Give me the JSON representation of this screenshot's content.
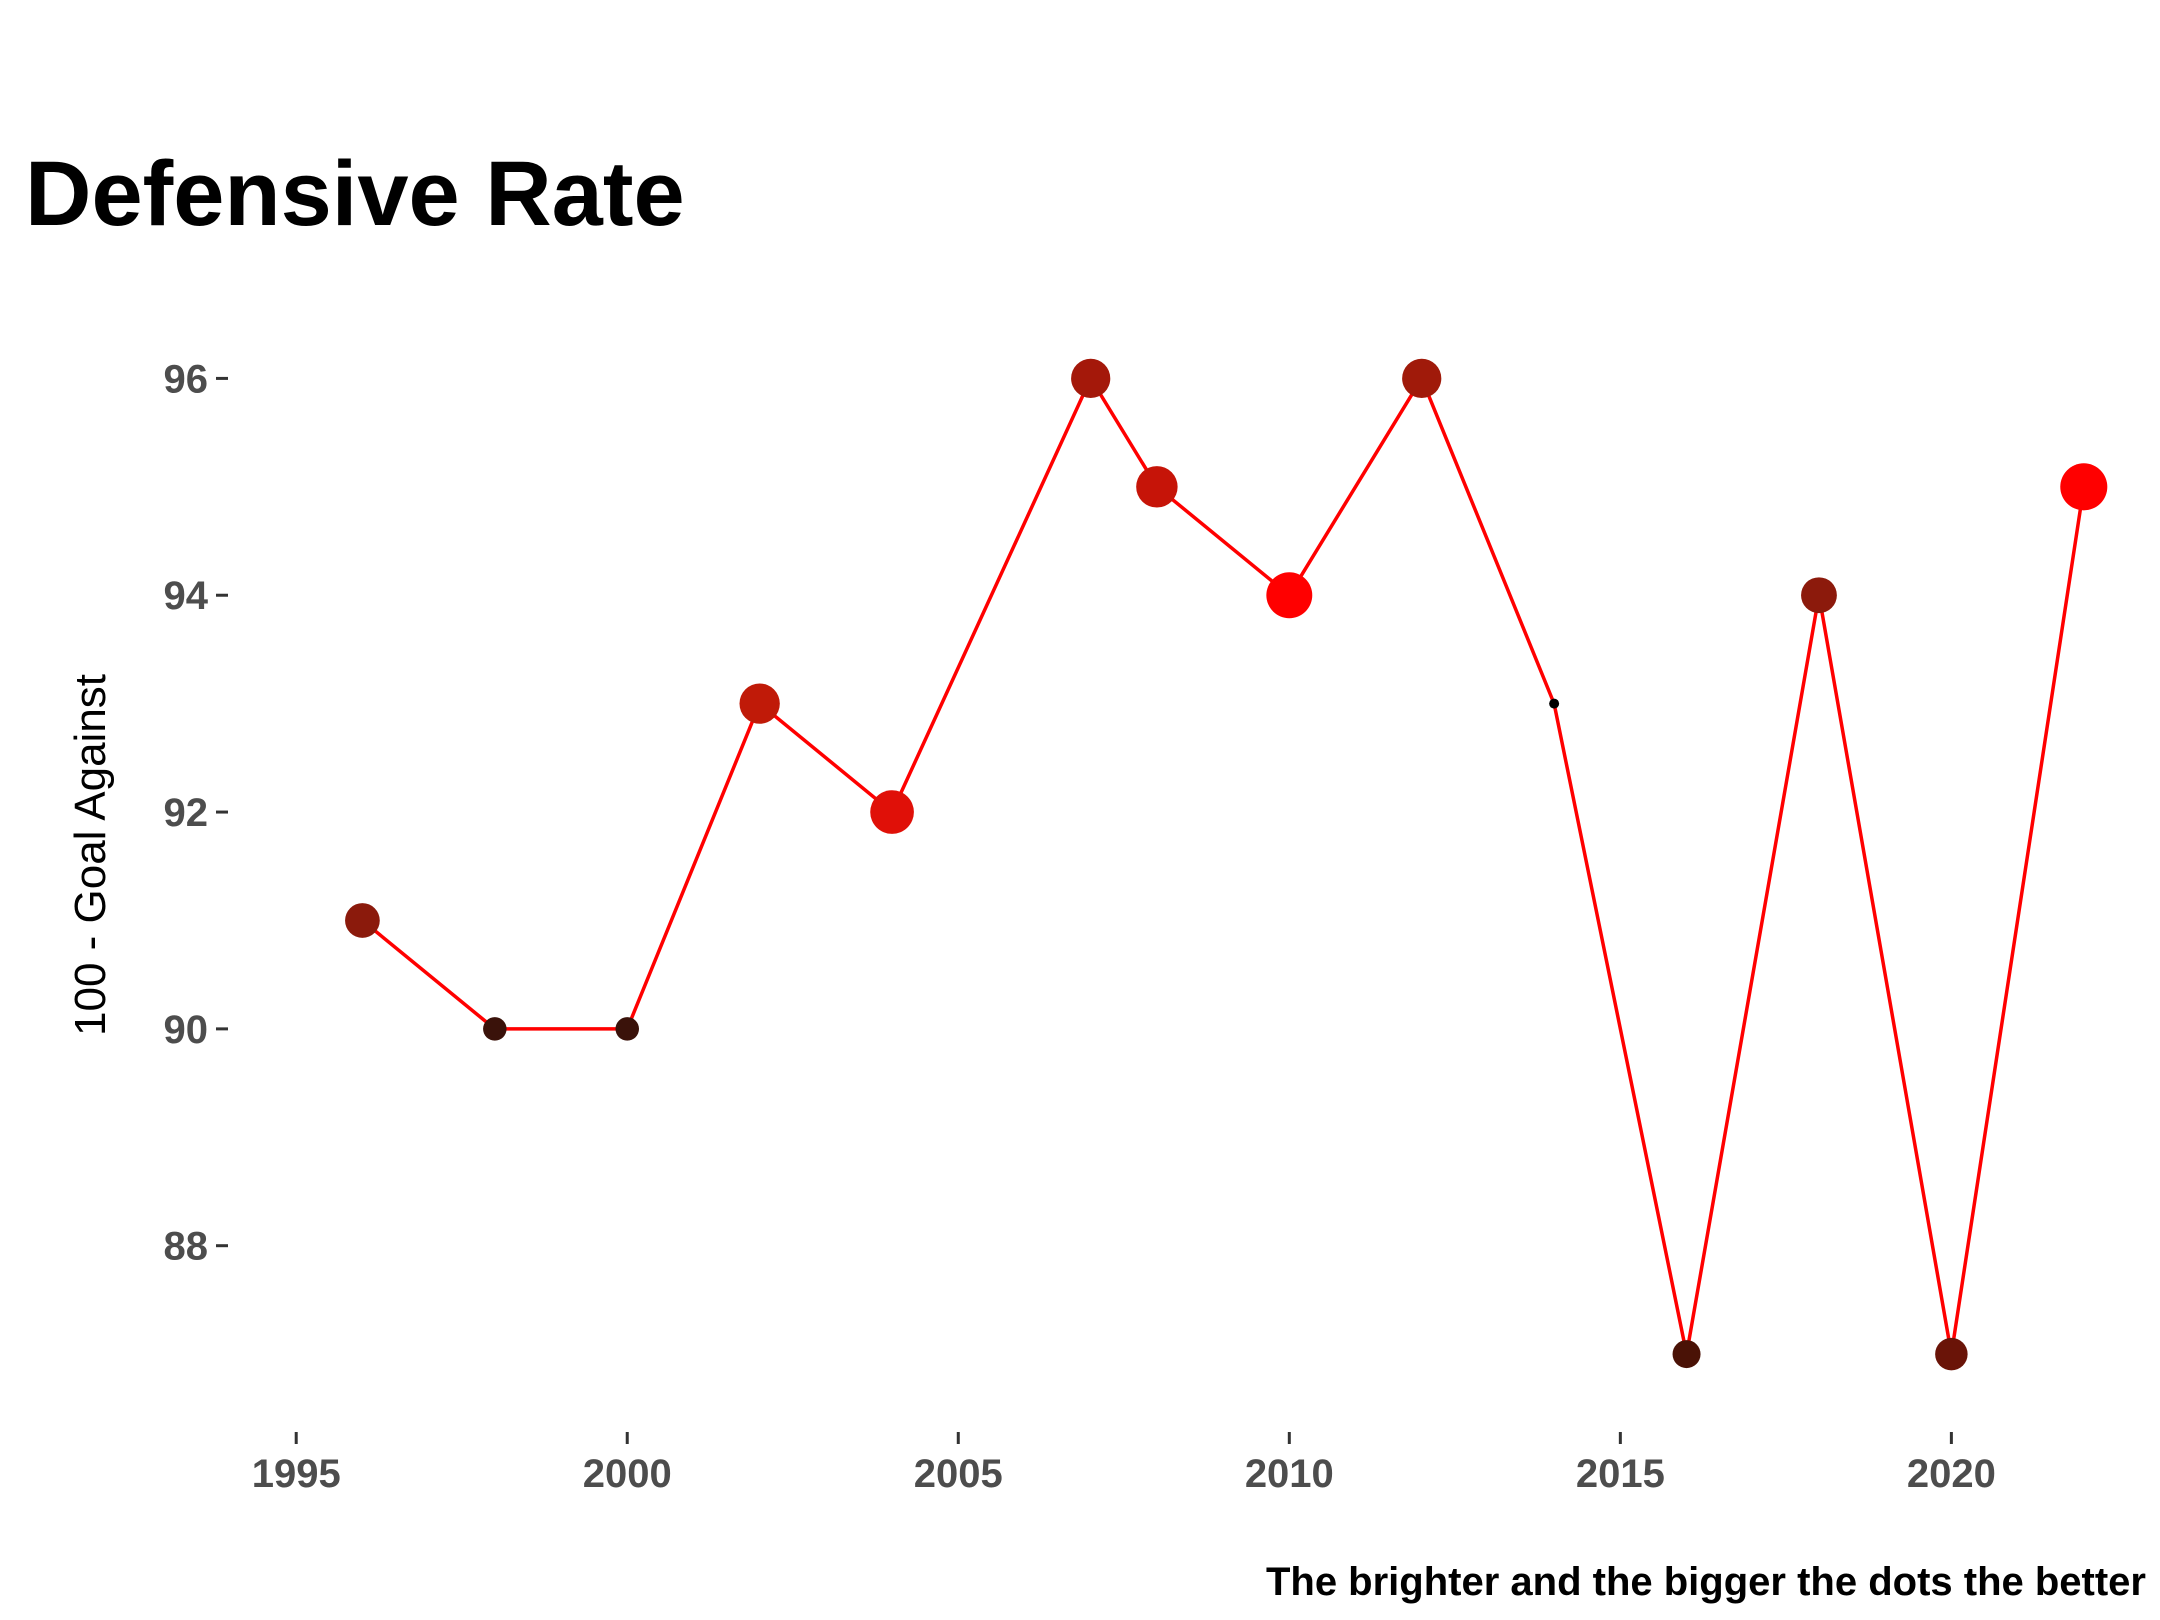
{
  "chart_data": {
    "type": "scatter",
    "title": "Defensive Rate",
    "ylabel": "100 - Goal Against",
    "xlabel": "",
    "caption": "The brighter and the bigger the dots the better",
    "xlim": [
      1994,
      2023
    ],
    "ylim": [
      86.3,
      97
    ],
    "x_ticks": [
      1995,
      2000,
      2005,
      2010,
      2015,
      2020
    ],
    "y_ticks": [
      88,
      90,
      92,
      94,
      96
    ],
    "grid": false,
    "legend": "none",
    "line_color": "#ff0000",
    "series": [
      {
        "x": [
          1996,
          1998,
          2000,
          2002,
          2004,
          2007,
          2008,
          2010,
          2012,
          2014,
          2016,
          2018,
          2020,
          2022
        ],
        "y": [
          91,
          90,
          90,
          93,
          92,
          96,
          95,
          94,
          96,
          93,
          87,
          94,
          87,
          95
        ],
        "colors": [
          "#8b1a0c",
          "#3a120a",
          "#3a120a",
          "#c01a08",
          "#e01008",
          "#a4180a",
          "#c61408",
          "#ff0000",
          "#a01a0a",
          "#000000",
          "#4a1206",
          "#8c1a0c",
          "#6a1408",
          "#ff0000"
        ],
        "sizes": [
          0.62,
          0.42,
          0.42,
          0.72,
          0.78,
          0.7,
          0.74,
          0.82,
          0.7,
          0.12,
          0.5,
          0.64,
          0.58,
          0.84
        ]
      }
    ]
  }
}
